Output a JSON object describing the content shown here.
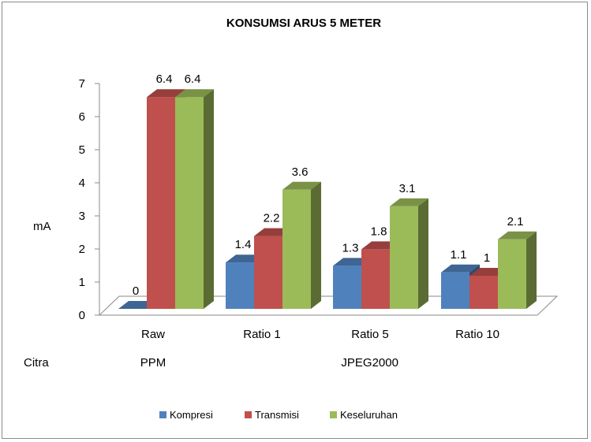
{
  "chart_data": {
    "type": "bar",
    "title": "KONSUMSI ARUS 5 METER",
    "ylabel": "mA",
    "xlabel": "Citra",
    "ylim": [
      0,
      7
    ],
    "yticks": [
      0,
      1,
      2,
      3,
      4,
      5,
      6,
      7
    ],
    "categories": [
      "Raw",
      "Ratio 1",
      "Ratio 5",
      "Ratio 10"
    ],
    "groups": [
      {
        "label": "PPM",
        "categories": [
          "Raw"
        ]
      },
      {
        "label": "JPEG2000",
        "categories": [
          "Ratio 1",
          "Ratio 5",
          "Ratio 10"
        ]
      }
    ],
    "series": [
      {
        "name": "Kompresi",
        "values": [
          0,
          1.4,
          1.3,
          1.1
        ],
        "labels": [
          "0",
          "1.4",
          "1.3",
          "1.1"
        ],
        "color": "#4f81bd"
      },
      {
        "name": "Transmisi",
        "values": [
          6.4,
          2.2,
          1.8,
          1.0
        ],
        "labels": [
          "6.4",
          "2.2",
          "1.8",
          "1"
        ],
        "color": "#c0504d"
      },
      {
        "name": "Keseluruhan",
        "values": [
          6.4,
          3.6,
          3.1,
          2.1
        ],
        "labels": [
          "6.4",
          "3.6",
          "3.1",
          "2.1"
        ],
        "color": "#9bbb59"
      }
    ],
    "style": "3d-clustered-column",
    "grid": false,
    "legend": "bottom"
  }
}
